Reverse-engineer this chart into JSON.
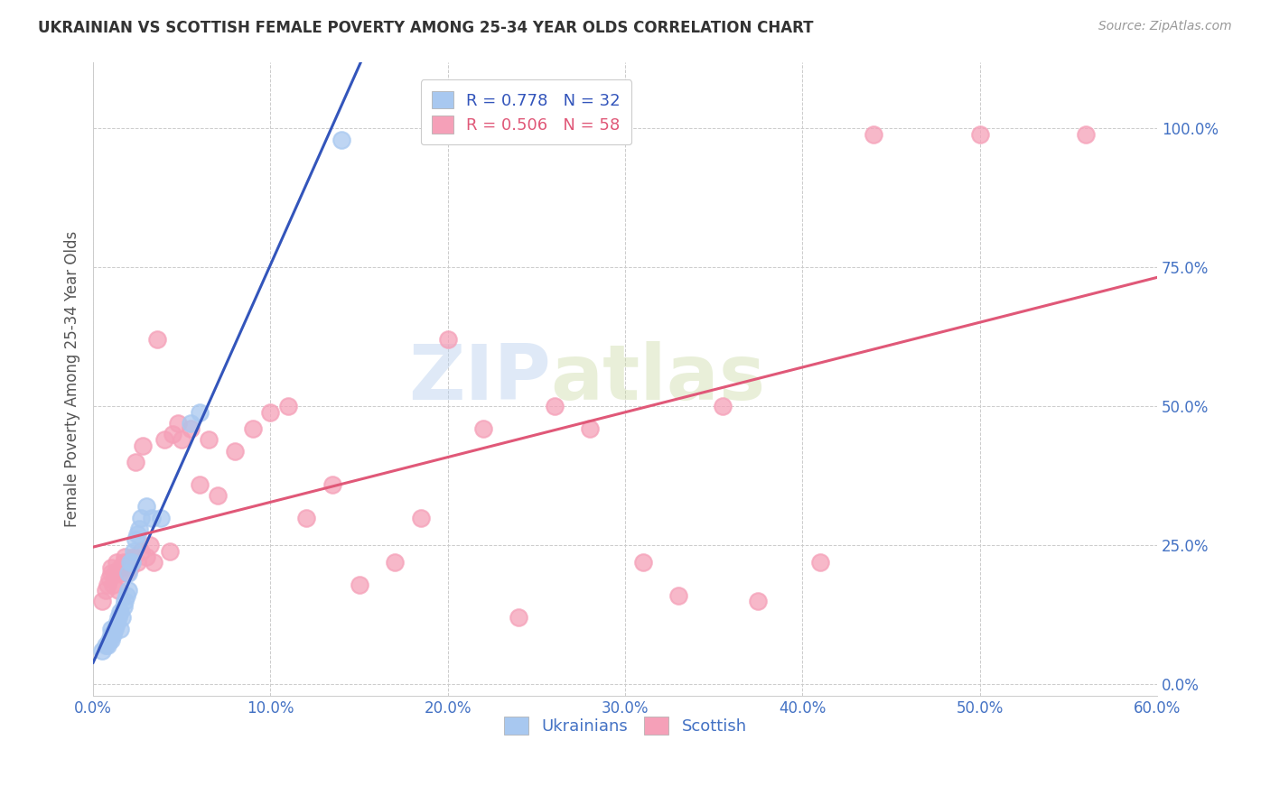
{
  "title": "UKRAINIAN VS SCOTTISH FEMALE POVERTY AMONG 25-34 YEAR OLDS CORRELATION CHART",
  "source": "Source: ZipAtlas.com",
  "ylabel": "Female Poverty Among 25-34 Year Olds",
  "xlim": [
    0.0,
    0.6
  ],
  "ylim": [
    -0.02,
    1.12
  ],
  "yticks": [
    0.0,
    0.25,
    0.5,
    0.75,
    1.0
  ],
  "xticks": [
    0.0,
    0.1,
    0.2,
    0.3,
    0.4,
    0.5,
    0.6
  ],
  "watermark_zip": "ZIP",
  "watermark_atlas": "atlas",
  "blue_scatter_color": "#A8C8F0",
  "pink_scatter_color": "#F5A0B8",
  "blue_line_color": "#3355BB",
  "pink_line_color": "#E05878",
  "tick_label_color": "#4472C4",
  "ylabel_color": "#555555",
  "title_color": "#333333",
  "source_color": "#999999",
  "grid_color": "#CCCCCC",
  "background": "#FFFFFF",
  "ukrainians_x": [
    0.005,
    0.007,
    0.008,
    0.009,
    0.01,
    0.01,
    0.01,
    0.011,
    0.012,
    0.013,
    0.014,
    0.015,
    0.015,
    0.016,
    0.017,
    0.018,
    0.019,
    0.02,
    0.02,
    0.021,
    0.022,
    0.023,
    0.024,
    0.025,
    0.026,
    0.027,
    0.03,
    0.033,
    0.038,
    0.055,
    0.06,
    0.14
  ],
  "ukrainians_y": [
    0.06,
    0.07,
    0.07,
    0.08,
    0.08,
    0.09,
    0.1,
    0.09,
    0.1,
    0.11,
    0.12,
    0.1,
    0.13,
    0.12,
    0.14,
    0.15,
    0.16,
    0.17,
    0.2,
    0.22,
    0.22,
    0.24,
    0.26,
    0.27,
    0.28,
    0.3,
    0.32,
    0.3,
    0.3,
    0.47,
    0.49,
    0.98
  ],
  "scottish_x": [
    0.005,
    0.007,
    0.008,
    0.009,
    0.01,
    0.01,
    0.011,
    0.012,
    0.013,
    0.014,
    0.015,
    0.016,
    0.017,
    0.018,
    0.019,
    0.02,
    0.021,
    0.022,
    0.023,
    0.024,
    0.025,
    0.027,
    0.028,
    0.03,
    0.032,
    0.034,
    0.036,
    0.04,
    0.043,
    0.045,
    0.048,
    0.05,
    0.055,
    0.06,
    0.065,
    0.07,
    0.08,
    0.09,
    0.1,
    0.11,
    0.12,
    0.135,
    0.15,
    0.17,
    0.185,
    0.2,
    0.22,
    0.24,
    0.26,
    0.28,
    0.31,
    0.33,
    0.355,
    0.375,
    0.41,
    0.44,
    0.5,
    0.56
  ],
  "scottish_y": [
    0.15,
    0.17,
    0.18,
    0.19,
    0.2,
    0.21,
    0.18,
    0.2,
    0.22,
    0.17,
    0.21,
    0.2,
    0.22,
    0.23,
    0.2,
    0.22,
    0.21,
    0.22,
    0.23,
    0.4,
    0.22,
    0.24,
    0.43,
    0.23,
    0.25,
    0.22,
    0.62,
    0.44,
    0.24,
    0.45,
    0.47,
    0.44,
    0.46,
    0.36,
    0.44,
    0.34,
    0.42,
    0.46,
    0.49,
    0.5,
    0.3,
    0.36,
    0.18,
    0.22,
    0.3,
    0.62,
    0.46,
    0.12,
    0.5,
    0.46,
    0.22,
    0.16,
    0.5,
    0.15,
    0.22,
    0.99,
    0.99,
    0.99
  ]
}
